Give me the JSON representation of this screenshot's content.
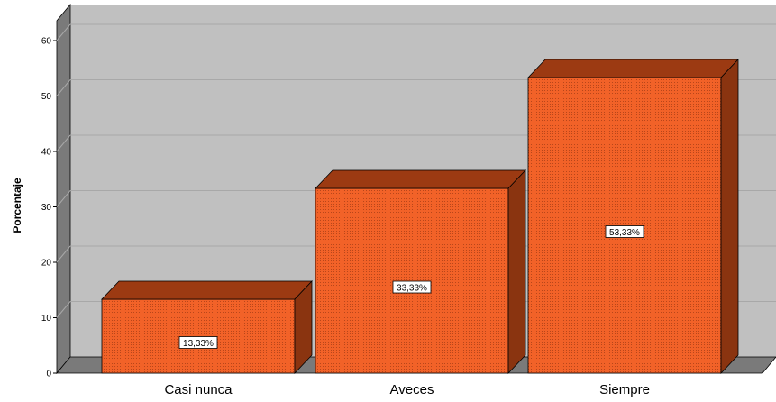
{
  "chart_data": {
    "type": "bar",
    "categories": [
      "Casi nunca",
      "Aveces",
      "Siempre"
    ],
    "values": [
      13.33,
      33.33,
      53.33
    ],
    "data_labels": [
      "13,33%",
      "33,33%",
      "53,33%"
    ],
    "title": "",
    "xlabel": "",
    "ylabel": "Porcentaje",
    "ylim": [
      0,
      60
    ],
    "yticks": [
      0,
      10,
      20,
      30,
      40,
      50,
      60
    ],
    "ytick_labels": [
      "0",
      "10",
      "20",
      "30",
      "40",
      "50",
      "60"
    ],
    "grid": true,
    "style": "3d",
    "colors": {
      "bar_front": "#f26228",
      "bar_top": "#9c3a12",
      "bar_side": "#8a3410",
      "plot_back": "#c0c0c0",
      "left_wall": "#7a7a7a",
      "floor": "#7a7a7a",
      "gridline": "#a8a8a8"
    }
  }
}
